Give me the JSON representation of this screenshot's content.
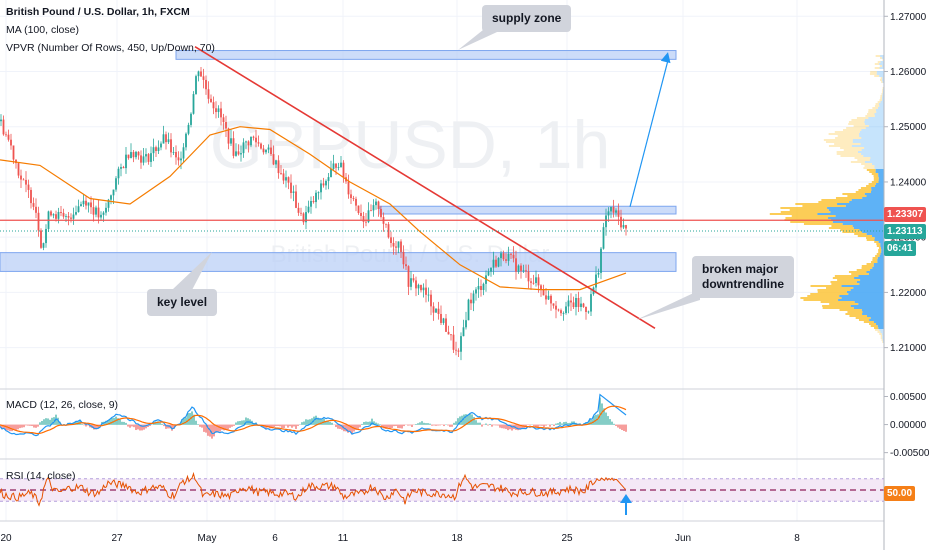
{
  "header": {
    "title": "British Pound / U.S. Dollar, 1h, FXCM",
    "ma_label": "MA (100, close)",
    "vpvr_label": "VPVR (Number Of Rows, 450, Up/Down, 70)",
    "macd_label": "MACD (12, 26, close, 9)",
    "rsi_label": "RSI (14, close)"
  },
  "watermark": {
    "symbol": "GBPUSD, 1h",
    "name": "British Pound / U.S. Dollar"
  },
  "annotations": {
    "supply_zone": "supply zone",
    "key_level": "key level",
    "broken_trend": [
      "broken major",
      "downtrendline"
    ]
  },
  "price_tags": {
    "red_line": "1.23307",
    "current": "1.23113",
    "countdown": "06:41",
    "rsi_level": "50.00"
  },
  "colors": {
    "candle_up": "#26a69a",
    "candle_down": "#ef5350",
    "ma": "#f57c00",
    "trendline": "#e53935",
    "zone": "#bbd0f7",
    "zone_border": "#7ea6ef",
    "macd": "#2196f3",
    "signal": "#ff6d00",
    "rsi": "#e65100",
    "rsi_band": "#f3e5f5",
    "vp_up": "#42a5f5",
    "vp_down": "#fbc02d",
    "tag_red": "#ef5350",
    "tag_teal": "#26a69a",
    "tag_blue": "#2196f3",
    "tag_rsi": "#f57f17"
  },
  "chart_data": [
    {
      "type": "candlestick",
      "title": "British Pound / U.S. Dollar, 1h, FXCM",
      "x_ticks": [
        "20",
        "27",
        "May",
        "6",
        "11",
        "18",
        "25",
        "Jun",
        "8"
      ],
      "y_ticks": [
        1.21,
        1.22,
        1.23,
        1.24,
        1.25,
        1.26,
        1.27
      ],
      "ylim": [
        1.2045,
        1.2715
      ],
      "path_points": [
        {
          "x": 0,
          "y": 1.251
        },
        {
          "x": 10,
          "y": 1.247
        },
        {
          "x": 22,
          "y": 1.24
        },
        {
          "x": 35,
          "y": 1.236
        },
        {
          "x": 42,
          "y": 1.228
        },
        {
          "x": 50,
          "y": 1.235
        },
        {
          "x": 65,
          "y": 1.233
        },
        {
          "x": 85,
          "y": 1.237
        },
        {
          "x": 102,
          "y": 1.233
        },
        {
          "x": 115,
          "y": 1.24
        },
        {
          "x": 130,
          "y": 1.246
        },
        {
          "x": 145,
          "y": 1.244
        },
        {
          "x": 165,
          "y": 1.248
        },
        {
          "x": 178,
          "y": 1.243
        },
        {
          "x": 190,
          "y": 1.252
        },
        {
          "x": 198,
          "y": 1.261
        },
        {
          "x": 208,
          "y": 1.256
        },
        {
          "x": 220,
          "y": 1.252
        },
        {
          "x": 235,
          "y": 1.245
        },
        {
          "x": 252,
          "y": 1.248
        },
        {
          "x": 270,
          "y": 1.245
        },
        {
          "x": 290,
          "y": 1.239
        },
        {
          "x": 302,
          "y": 1.233
        },
        {
          "x": 315,
          "y": 1.237
        },
        {
          "x": 325,
          "y": 1.24
        },
        {
          "x": 338,
          "y": 1.244
        },
        {
          "x": 350,
          "y": 1.238
        },
        {
          "x": 365,
          "y": 1.233
        },
        {
          "x": 378,
          "y": 1.236
        },
        {
          "x": 390,
          "y": 1.229
        },
        {
          "x": 400,
          "y": 1.229
        },
        {
          "x": 408,
          "y": 1.222
        },
        {
          "x": 420,
          "y": 1.221
        },
        {
          "x": 435,
          "y": 1.217
        },
        {
          "x": 448,
          "y": 1.213
        },
        {
          "x": 458,
          "y": 1.208
        },
        {
          "x": 468,
          "y": 1.218
        },
        {
          "x": 480,
          "y": 1.221
        },
        {
          "x": 492,
          "y": 1.225
        },
        {
          "x": 505,
          "y": 1.227
        },
        {
          "x": 520,
          "y": 1.224
        },
        {
          "x": 535,
          "y": 1.222
        },
        {
          "x": 548,
          "y": 1.219
        },
        {
          "x": 560,
          "y": 1.217
        },
        {
          "x": 575,
          "y": 1.218
        },
        {
          "x": 588,
          "y": 1.217
        },
        {
          "x": 598,
          "y": 1.224
        },
        {
          "x": 606,
          "y": 1.234
        },
        {
          "x": 612,
          "y": 1.235
        },
        {
          "x": 620,
          "y": 1.233
        },
        {
          "x": 626,
          "y": 1.2311
        }
      ],
      "moving_average": [
        {
          "x": 0,
          "y": 1.244
        },
        {
          "x": 40,
          "y": 1.243
        },
        {
          "x": 90,
          "y": 1.237
        },
        {
          "x": 130,
          "y": 1.236
        },
        {
          "x": 170,
          "y": 1.241
        },
        {
          "x": 210,
          "y": 1.2485
        },
        {
          "x": 240,
          "y": 1.25
        },
        {
          "x": 270,
          "y": 1.2495
        },
        {
          "x": 310,
          "y": 1.245
        },
        {
          "x": 350,
          "y": 1.24
        },
        {
          "x": 390,
          "y": 1.236
        },
        {
          "x": 420,
          "y": 1.231
        },
        {
          "x": 460,
          "y": 1.225
        },
        {
          "x": 500,
          "y": 1.221
        },
        {
          "x": 540,
          "y": 1.2205
        },
        {
          "x": 580,
          "y": 1.2205
        },
        {
          "x": 626,
          "y": 1.2235
        }
      ],
      "trendline": {
        "from": {
          "x": 195,
          "y": 1.2645
        },
        "to": {
          "x": 655,
          "y": 1.2135
        }
      },
      "horizontal_line": 1.23307,
      "current_price": 1.23113,
      "zones": [
        {
          "name": "supply zone",
          "x0": 176,
          "x1": 676,
          "y_top": 1.2638,
          "y_bottom": 1.2622
        },
        {
          "name": "resistance box",
          "x0": 380,
          "x1": 676,
          "y_top": 1.2356,
          "y_bottom": 1.2342
        },
        {
          "name": "key level",
          "x0": 0,
          "x1": 676,
          "y_top": 1.2272,
          "y_bottom": 1.2238
        }
      ],
      "projection_arrow": {
        "from": {
          "x": 630,
          "y": 1.2355
        },
        "to": {
          "x": 668,
          "y": 1.2635
        }
      }
    },
    {
      "type": "line",
      "title": "MACD (12, 26, close, 9)",
      "y_ticks": [
        0.005,
        0.0,
        -0.005
      ],
      "ylim": [
        -0.0056,
        0.0058
      ],
      "series": [
        {
          "name": "MACD",
          "color": "#2196f3"
        },
        {
          "name": "Signal",
          "color": "#ff6d00"
        }
      ]
    },
    {
      "type": "line",
      "title": "RSI (14, close)",
      "ylim": [
        0,
        100
      ],
      "bands": [
        30,
        70
      ],
      "level": 50
    }
  ]
}
